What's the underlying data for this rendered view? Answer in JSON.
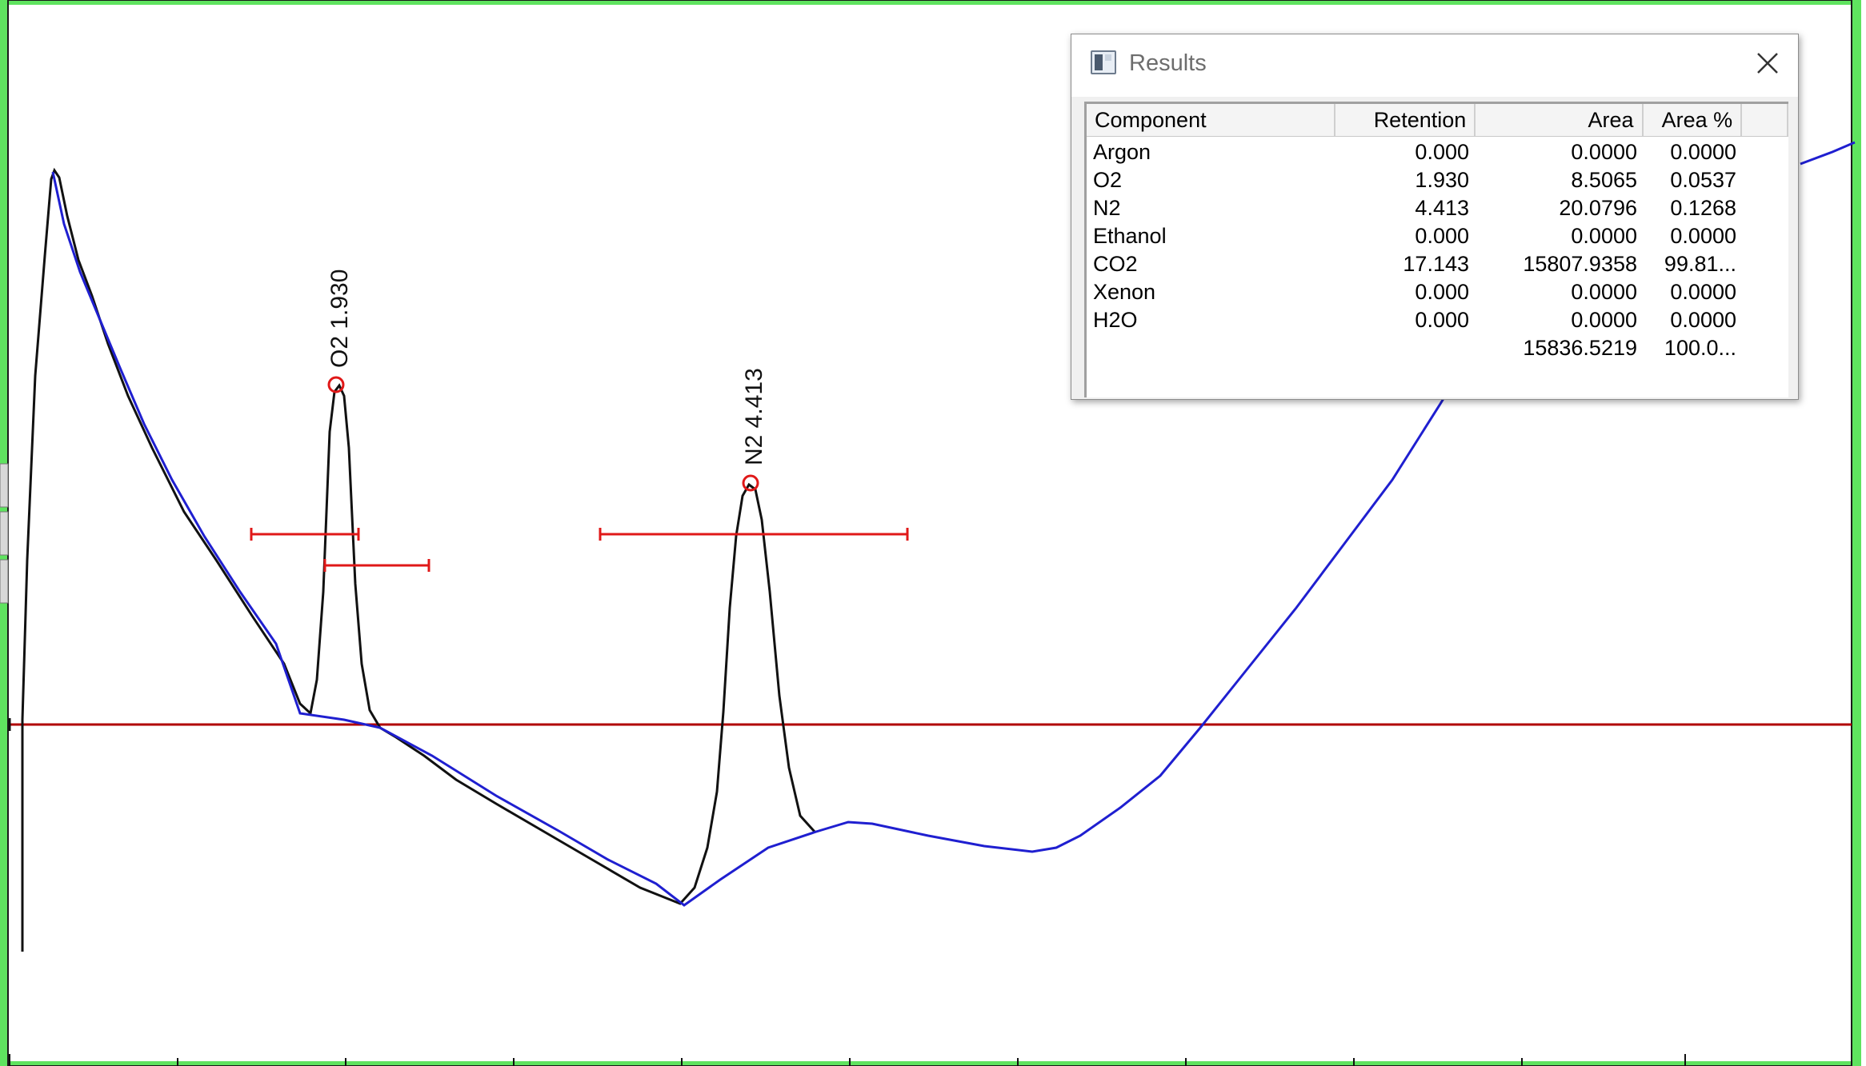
{
  "peak_labels": {
    "o2": "O2 1.930",
    "n2": "N2 4.413"
  },
  "results_window": {
    "title": "Results",
    "icon": "results-window-icon",
    "close_icon": "close-icon",
    "columns": [
      "Component",
      "Retention",
      "Area",
      "Area %"
    ],
    "rows": [
      {
        "component": "Argon",
        "retention": "0.000",
        "area": "0.0000",
        "area_pct": "0.0000"
      },
      {
        "component": "O2",
        "retention": "1.930",
        "area": "8.5065",
        "area_pct": "0.0537"
      },
      {
        "component": "N2",
        "retention": "4.413",
        "area": "20.0796",
        "area_pct": "0.1268"
      },
      {
        "component": "Ethanol",
        "retention": "0.000",
        "area": "0.0000",
        "area_pct": "0.0000"
      },
      {
        "component": "CO2",
        "retention": "17.143",
        "area": "15807.9358",
        "area_pct": "99.81..."
      },
      {
        "component": "Xenon",
        "retention": "0.000",
        "area": "0.0000",
        "area_pct": "0.0000"
      },
      {
        "component": "H2O",
        "retention": "0.000",
        "area": "0.0000",
        "area_pct": "0.0000"
      },
      {
        "component": "",
        "retention": "",
        "area": "15836.5219",
        "area_pct": "100.0..."
      }
    ]
  },
  "colors": {
    "border_green": "#66ee66",
    "signal": "#111111",
    "baseline": "#1f1fd0",
    "zero_line": "#b00000",
    "marker": "#e01818"
  }
}
